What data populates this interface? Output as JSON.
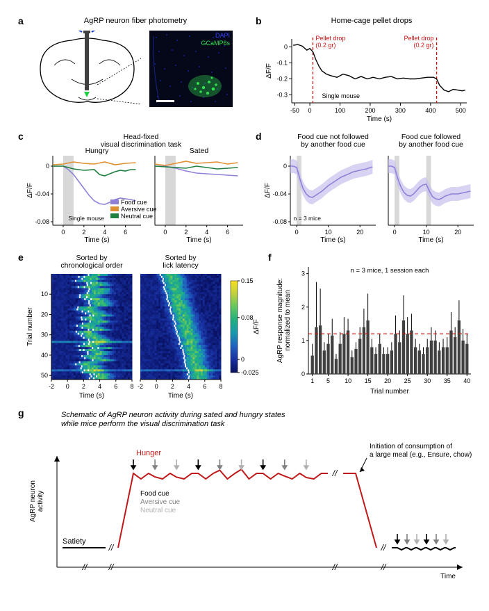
{
  "panel_a": {
    "label": "a",
    "title": "AgRP neuron fiber photometry",
    "dapi_label": "DAPI",
    "gcamp_label": "GCaMP6s",
    "colors": {
      "dapi": "#2030d0",
      "gcamp": "#20d040",
      "outline": "#000000",
      "bg": "#ffffff"
    }
  },
  "panel_b": {
    "label": "b",
    "title": "Home-cage pellet drops",
    "ylabel": "ΔF/F",
    "xlabel": "Time (s)",
    "xlim": [
      -60,
      520
    ],
    "ylim": [
      -0.35,
      0.05
    ],
    "xticks": [
      -50,
      0,
      100,
      200,
      300,
      400,
      500
    ],
    "yticks": [
      0,
      -0.1,
      -0.2,
      -0.3
    ],
    "events": [
      {
        "x": 10,
        "label": "Pellet drop\n(0.2 gr)",
        "color": "#d01010"
      },
      {
        "x": 420,
        "label": "Pellet drop\n(0.2 gr)",
        "color": "#d01010"
      }
    ],
    "note": "Single mouse",
    "trace_color": "#000000",
    "trace": [
      [
        -55,
        0.01
      ],
      [
        -40,
        0.015
      ],
      [
        -25,
        0.005
      ],
      [
        -10,
        -0.02
      ],
      [
        0,
        -0.01
      ],
      [
        10,
        -0.03
      ],
      [
        20,
        -0.08
      ],
      [
        30,
        -0.12
      ],
      [
        40,
        -0.15
      ],
      [
        55,
        -0.17
      ],
      [
        70,
        -0.18
      ],
      [
        90,
        -0.19
      ],
      [
        110,
        -0.17
      ],
      [
        130,
        -0.18
      ],
      [
        150,
        -0.2
      ],
      [
        170,
        -0.185
      ],
      [
        190,
        -0.2
      ],
      [
        210,
        -0.19
      ],
      [
        230,
        -0.2
      ],
      [
        250,
        -0.19
      ],
      [
        270,
        -0.185
      ],
      [
        290,
        -0.2
      ],
      [
        310,
        -0.195
      ],
      [
        330,
        -0.2
      ],
      [
        350,
        -0.2
      ],
      [
        370,
        -0.195
      ],
      [
        390,
        -0.19
      ],
      [
        410,
        -0.19
      ],
      [
        420,
        -0.2
      ],
      [
        430,
        -0.24
      ],
      [
        445,
        -0.27
      ],
      [
        460,
        -0.28
      ],
      [
        475,
        -0.265
      ],
      [
        490,
        -0.27
      ],
      [
        505,
        -0.275
      ],
      [
        515,
        -0.27
      ]
    ]
  },
  "panel_c": {
    "label": "c",
    "title": "Head-fixed\nvisual discrimination task",
    "subtitle_left": "Hungry",
    "subtitle_right": "Sated",
    "ylabel": "ΔF/F",
    "xlabel": "Time (s)",
    "xlim": [
      -1,
      7.5
    ],
    "ylim": [
      -0.085,
      0.015
    ],
    "xticks": [
      0,
      2,
      4,
      6
    ],
    "yticks": [
      0,
      -0.04,
      -0.08
    ],
    "legend": [
      {
        "label": "Food cue",
        "color": "#9080d8"
      },
      {
        "label": "Aversive cue",
        "color": "#e09030"
      },
      {
        "label": "Neutral cue",
        "color": "#208040"
      }
    ],
    "note": "Single mouse",
    "cue_band": [
      0,
      1
    ],
    "cue_band_color": "#d8d8d8",
    "hungry": {
      "food": [
        [
          -1,
          0
        ],
        [
          0,
          0
        ],
        [
          0.5,
          -0.005
        ],
        [
          1,
          -0.012
        ],
        [
          1.5,
          -0.022
        ],
        [
          2,
          -0.032
        ],
        [
          2.5,
          -0.042
        ],
        [
          3,
          -0.05
        ],
        [
          3.5,
          -0.054
        ],
        [
          4,
          -0.055
        ],
        [
          4.5,
          -0.052
        ],
        [
          5,
          -0.048
        ],
        [
          5.5,
          -0.046
        ],
        [
          6,
          -0.047
        ],
        [
          6.5,
          -0.048
        ],
        [
          7,
          -0.05
        ]
      ],
      "aversive": [
        [
          -1,
          0.002
        ],
        [
          0,
          0.003
        ],
        [
          1,
          0.006
        ],
        [
          2,
          0.004
        ],
        [
          3,
          0.003
        ],
        [
          4,
          0.006
        ],
        [
          5,
          0.002
        ],
        [
          6,
          0.004
        ],
        [
          7,
          0.005
        ]
      ],
      "neutral": [
        [
          -1,
          0
        ],
        [
          0,
          0
        ],
        [
          1,
          -0.004
        ],
        [
          2,
          -0.006
        ],
        [
          3,
          -0.005
        ],
        [
          3.5,
          -0.012
        ],
        [
          4,
          -0.014
        ],
        [
          4.5,
          -0.011
        ],
        [
          5,
          -0.008
        ],
        [
          5.5,
          -0.006
        ],
        [
          6,
          -0.007
        ],
        [
          6.5,
          -0.005
        ],
        [
          7,
          -0.005
        ]
      ]
    },
    "sated": {
      "food": [
        [
          -1,
          0
        ],
        [
          0,
          0
        ],
        [
          1,
          -0.003
        ],
        [
          2,
          -0.007
        ],
        [
          3,
          -0.01
        ],
        [
          4,
          -0.011
        ],
        [
          5,
          -0.012
        ],
        [
          6,
          -0.013
        ],
        [
          7,
          -0.014
        ]
      ],
      "aversive": [
        [
          -1,
          0.003
        ],
        [
          0,
          0.001
        ],
        [
          1,
          0.004
        ],
        [
          2,
          0.007
        ],
        [
          3,
          0.004
        ],
        [
          4,
          0.005
        ],
        [
          5,
          0.006
        ],
        [
          6,
          0.003
        ],
        [
          7,
          0.005
        ]
      ],
      "neutral": [
        [
          -1,
          0
        ],
        [
          0,
          -0.001
        ],
        [
          1,
          -0.002
        ],
        [
          2,
          -0.003
        ],
        [
          3,
          0
        ],
        [
          4,
          -0.002
        ],
        [
          5,
          -0.004
        ],
        [
          6,
          -0.003
        ],
        [
          7,
          -0.002
        ]
      ]
    }
  },
  "panel_d": {
    "label": "d",
    "title_left": "Food cue not followed\nby another food cue",
    "title_right": "Food cue followed\nby another food cue",
    "ylabel": "ΔF/F",
    "xlabel": "Time (s)",
    "xlim": [
      -2,
      25
    ],
    "ylim": [
      -0.085,
      0.015
    ],
    "xticks": [
      0,
      10,
      20
    ],
    "yticks": [
      0,
      -0.04,
      -0.08
    ],
    "note": "n = 3 mice",
    "cue_band_color": "#d8d8d8",
    "color": "#9080d8",
    "fill": "#c8c0ec",
    "left": {
      "bands": [
        [
          0,
          1.5
        ]
      ],
      "trace": [
        [
          -2,
          0
        ],
        [
          -1,
          0
        ],
        [
          0,
          -0.002
        ],
        [
          1,
          -0.018
        ],
        [
          2,
          -0.032
        ],
        [
          3,
          -0.04
        ],
        [
          4,
          -0.044
        ],
        [
          5,
          -0.045
        ],
        [
          6,
          -0.042
        ],
        [
          8,
          -0.036
        ],
        [
          10,
          -0.028
        ],
        [
          12,
          -0.022
        ],
        [
          14,
          -0.016
        ],
        [
          16,
          -0.012
        ],
        [
          18,
          -0.008
        ],
        [
          20,
          -0.006
        ],
        [
          22,
          -0.004
        ],
        [
          24,
          -0.001
        ]
      ],
      "shade": 0.01
    },
    "right": {
      "bands": [
        [
          0,
          1.5
        ],
        [
          10,
          11.5
        ]
      ],
      "trace": [
        [
          -2,
          0
        ],
        [
          -1,
          0
        ],
        [
          0,
          -0.002
        ],
        [
          1,
          -0.018
        ],
        [
          2,
          -0.03
        ],
        [
          3,
          -0.038
        ],
        [
          4,
          -0.042
        ],
        [
          5,
          -0.043
        ],
        [
          6,
          -0.04
        ],
        [
          7,
          -0.035
        ],
        [
          8,
          -0.03
        ],
        [
          9,
          -0.027
        ],
        [
          10,
          -0.026
        ],
        [
          11,
          -0.036
        ],
        [
          12,
          -0.044
        ],
        [
          13,
          -0.047
        ],
        [
          14,
          -0.048
        ],
        [
          15,
          -0.046
        ],
        [
          16,
          -0.043
        ],
        [
          18,
          -0.04
        ],
        [
          20,
          -0.04
        ],
        [
          22,
          -0.038
        ],
        [
          24,
          -0.036
        ]
      ],
      "shade": 0.01
    }
  },
  "panel_e": {
    "label": "e",
    "title_left": "Sorted by\nchronological order",
    "title_right": "Sorted by\nlick latency",
    "ylabel": "Trial number",
    "xlabel": "Time (s)",
    "xlim": [
      -2,
      8
    ],
    "ylim": [
      0,
      52
    ],
    "xticks": [
      -2,
      0,
      2,
      4,
      6,
      8
    ],
    "yticks": [
      10,
      20,
      30,
      40,
      50
    ],
    "cbar_label": "ΔF/F",
    "cbar_ticks": [
      {
        "v": 0.15,
        "label": "0.15"
      },
      {
        "v": 0.08,
        "label": "0.08"
      },
      {
        "v": 0,
        "label": "0"
      },
      {
        "v": -0.025,
        "label": "-0.025"
      }
    ],
    "colormap": [
      "#081060",
      "#1830a0",
      "#2060c0",
      "#1898b0",
      "#20b080",
      "#60c860",
      "#c0d040",
      "#f8e020"
    ],
    "lick_color": "#ffffff",
    "rows": 52,
    "cols": 40
  },
  "panel_f": {
    "label": "f",
    "ylabel": "AgRP response magnitude:\nnormalized to mean",
    "xlabel": "Trial number",
    "xlim": [
      0,
      41
    ],
    "ylim": [
      0,
      3.2
    ],
    "xticks": [
      1,
      5,
      10,
      15,
      20,
      25,
      30,
      35,
      40
    ],
    "yticks": [
      0,
      1,
      2,
      3
    ],
    "note": "n = 3 mice, 1 session each",
    "dash": {
      "y": 1.2,
      "color": "#d01010"
    },
    "bar_color": "#404040",
    "err_color": "#000000",
    "values": [
      0.55,
      1.4,
      1.45,
      0.7,
      0.9,
      1.15,
      0.45,
      0.9,
      1.2,
      1.3,
      0.5,
      0.75,
      1.05,
      1.4,
      1.6,
      0.8,
      0.6,
      0.9,
      0.6,
      0.6,
      0.7,
      1.2,
      0.95,
      1.6,
      1.2,
      1.3,
      0.8,
      0.7,
      0.6,
      0.8,
      1.0,
      1.0,
      0.7,
      0.8,
      0.8,
      1.3,
      1.1,
      1.6,
      1.0,
      0.9
    ],
    "errs": [
      0.35,
      1.35,
      1.1,
      0.25,
      0.3,
      0.5,
      0.15,
      0.35,
      0.5,
      0.35,
      0.2,
      0.2,
      0.35,
      0.55,
      0.8,
      0.25,
      0.2,
      0.3,
      0.2,
      0.2,
      0.25,
      0.55,
      0.35,
      0.75,
      0.5,
      0.5,
      0.25,
      0.2,
      0.2,
      0.25,
      0.4,
      0.3,
      0.25,
      0.25,
      0.3,
      0.55,
      0.3,
      0.6,
      0.35,
      0.3
    ]
  },
  "panel_g": {
    "label": "g",
    "title": "Schematic of AgRP neuron activity during sated and hungry states\nwhile mice perform the visual discrimination task",
    "ylabel": "AgRP neuron\nactivity",
    "xlabel": "Time",
    "hunger_label": "Hunger",
    "satiety_label": "Satiety",
    "cues": [
      {
        "label": "Food cue",
        "color": "#000000"
      },
      {
        "label": "Aversive cue",
        "color": "#808080"
      },
      {
        "label": "Neutral cue",
        "color": "#b0b0b0"
      }
    ],
    "meal_label": "Initiation of consumption of\na large meal (e.g., Ensure, chow)",
    "colors": {
      "hunger": "#c01818",
      "satiety": "#000000"
    }
  }
}
